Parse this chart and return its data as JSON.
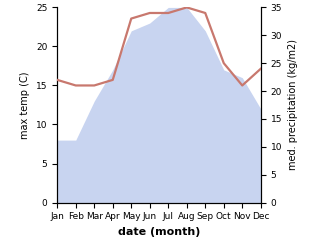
{
  "months": [
    "Jan",
    "Feb",
    "Mar",
    "Apr",
    "May",
    "Jun",
    "Jul",
    "Aug",
    "Sep",
    "Oct",
    "Nov",
    "Dec"
  ],
  "temperature": [
    8,
    8,
    13,
    17,
    22,
    23,
    25,
    25,
    22,
    17,
    16,
    12
  ],
  "precipitation": [
    22,
    21,
    21,
    22,
    33,
    34,
    34,
    35,
    34,
    25,
    21,
    24
  ],
  "line_color": "#c8786e",
  "fill_color": "#c8d4f0",
  "ylabel_left": "max temp (C)",
  "ylabel_right": "med. precipitation (kg/m2)",
  "xlabel": "date (month)",
  "ylim_left": [
    0,
    25
  ],
  "ylim_right": [
    0,
    35
  ],
  "yticks_left": [
    0,
    5,
    10,
    15,
    20,
    25
  ],
  "yticks_right": [
    0,
    5,
    10,
    15,
    20,
    25,
    30,
    35
  ],
  "label_fontsize": 7,
  "tick_fontsize": 6.5,
  "xlabel_fontsize": 8,
  "line_width": 1.6
}
